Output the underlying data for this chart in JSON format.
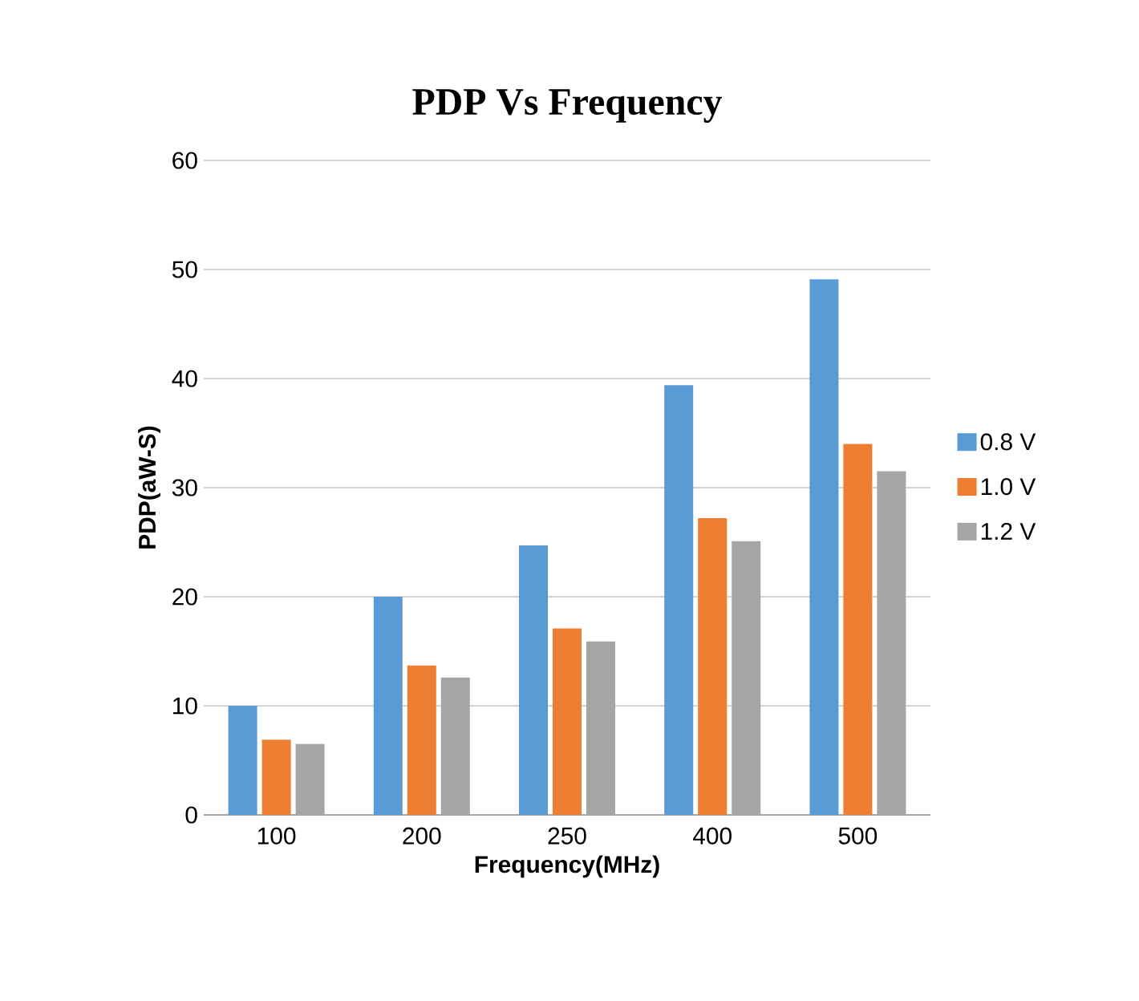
{
  "chart_data": {
    "type": "bar",
    "title": "PDP Vs Frequency",
    "xlabel": "Frequency(MHz)",
    "ylabel": "PDP(aW-S)",
    "categories": [
      "100",
      "200",
      "250",
      "400",
      "500"
    ],
    "series": [
      {
        "name": "0.8 V",
        "color": "#5b9bd5",
        "values": [
          10.0,
          20.0,
          24.7,
          39.4,
          49.1
        ]
      },
      {
        "name": "1.0 V",
        "color": "#ed7d31",
        "values": [
          6.9,
          13.7,
          17.1,
          27.2,
          34.0
        ]
      },
      {
        "name": "1.2 V",
        "color": "#a5a5a5",
        "values": [
          6.5,
          12.6,
          15.9,
          25.1,
          31.5
        ]
      }
    ],
    "ylim": [
      0,
      60
    ],
    "yticks": [
      0,
      10,
      20,
      30,
      40,
      50,
      60
    ],
    "grid": "y",
    "legend": "right"
  }
}
